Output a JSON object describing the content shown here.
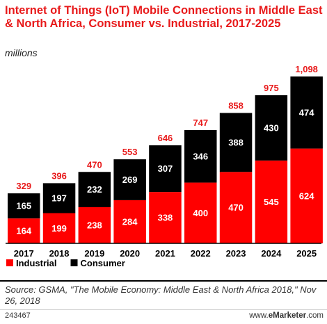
{
  "chart_data": {
    "type": "bar",
    "stacked": true,
    "title": "Internet of Things (IoT) Mobile Connections in Middle East & North Africa, Consumer vs. Industrial, 2017-2025",
    "subtitle": "millions",
    "categories": [
      "2017",
      "2018",
      "2019",
      "2020",
      "2021",
      "2022",
      "2023",
      "2024",
      "2025"
    ],
    "series": [
      {
        "name": "Industrial",
        "color": "#ff0000",
        "values": [
          164,
          199,
          238,
          284,
          338,
          400,
          470,
          545,
          624
        ]
      },
      {
        "name": "Consumer",
        "color": "#000000",
        "values": [
          165,
          197,
          232,
          269,
          307,
          346,
          388,
          430,
          474
        ]
      }
    ],
    "totals": [
      "329",
      "396",
      "470",
      "553",
      "646",
      "747",
      "858",
      "975",
      "1,098"
    ],
    "total_label_color": "#e8191a",
    "legend_position": "bottom-left",
    "grid": false,
    "ylim": [
      0,
      1098
    ]
  },
  "source": "Source: GSMA, \"The Mobile Economy: Middle East & North Africa 2018,\" Nov 26, 2018",
  "chart_id": "243467",
  "brand": {
    "prefix": "www.",
    "name": "eMarketer",
    "suffix": ".com"
  }
}
